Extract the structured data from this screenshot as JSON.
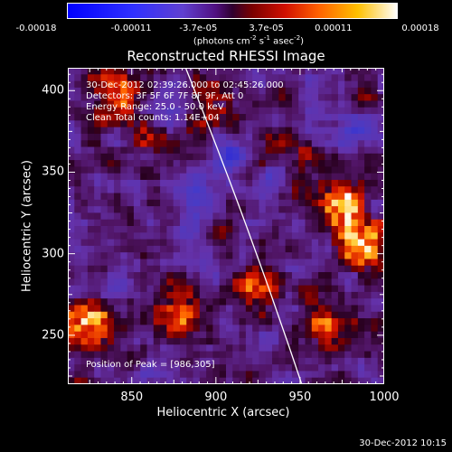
{
  "colorbar": {
    "tick_labels": [
      "-0.00018",
      "-0.00011",
      "-3.7e-05",
      "3.7e-05",
      "0.00011",
      "0.00018"
    ],
    "units_prefix": "(photons cm",
    "units_exp1": "-2",
    "units_mid1": " s",
    "units_exp2": "-1",
    "units_mid2": " asec",
    "units_exp3": "-2",
    "units_suffix": ")",
    "colormap": "blue-purple-red-yellow-white (negative blue, positive hot)"
  },
  "chart_data": {
    "type": "heatmap",
    "title": "Reconstructed RHESSI Image",
    "xlabel": "Heliocentric X (arcsec)",
    "ylabel": "Heliocentric Y (arcsec)",
    "xlim": [
      812,
      1000
    ],
    "ylim": [
      220,
      414
    ],
    "xticks": [
      "850",
      "900",
      "950",
      "1000"
    ],
    "yticks": [
      "250",
      "300",
      "350",
      "400"
    ],
    "color_range": [
      -0.00018,
      0.00018
    ],
    "limb_line": [
      [
        882,
        414
      ],
      [
        951,
        220
      ]
    ],
    "peak": [
      986,
      305
    ],
    "annotations": [
      "30-Dec-2012 02:39:26.000 to 02:45:26.000",
      "Detectors: 3F 5F 6F 7F 8F 9F, Att 0",
      "Energy Range: 25.0 - 50.0 keV",
      "Clean     Total counts: 1.14E+04"
    ],
    "peak_text": "Position of Peak = [986,305]"
  },
  "footer": "30-Dec-2012 10:15"
}
